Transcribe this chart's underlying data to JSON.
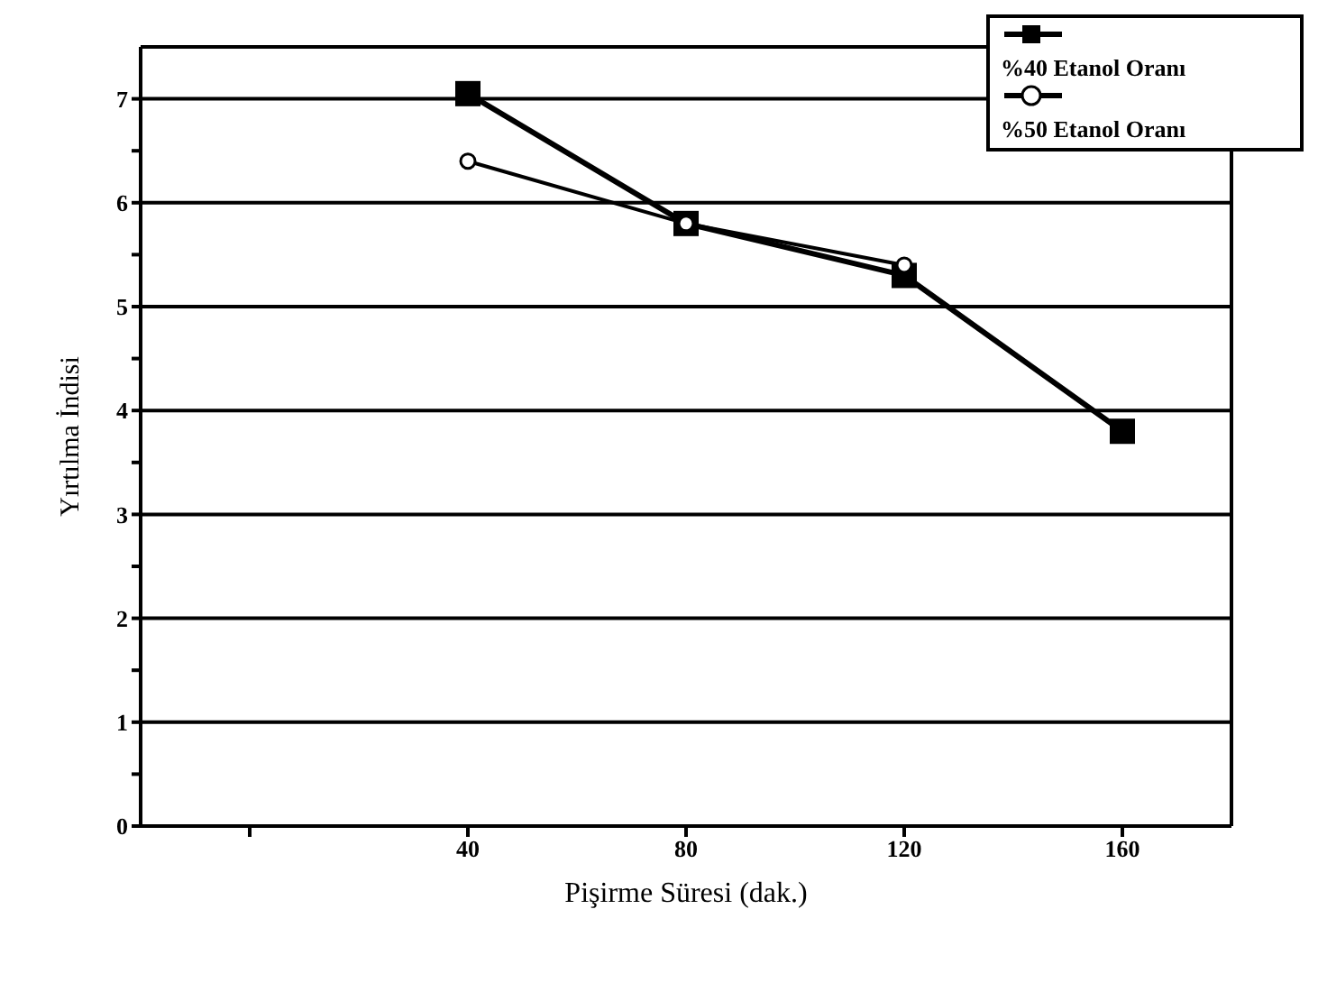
{
  "chart_data": {
    "type": "line",
    "xlabel": "Pişirme Süresi (dak.)",
    "ylabel": "Yırtılma İndisi",
    "categories": [
      null,
      "40",
      "80",
      "120",
      "160"
    ],
    "series": [
      {
        "name": "%40 Etanol Oranı",
        "color": "#000000",
        "marker": "square",
        "values": [
          null,
          7.05,
          5.8,
          5.3,
          3.8
        ]
      },
      {
        "name": "%50 Etanol Oranı",
        "color": "#000000",
        "marker": "circle",
        "values": [
          null,
          6.4,
          5.8,
          5.4,
          null
        ]
      }
    ],
    "ylim": [
      0,
      7.5
    ],
    "yticks": [
      0,
      {
        "value": 0.5,
        "label": null
      },
      1,
      {
        "value": 1.5,
        "label": null
      },
      2,
      {
        "value": 2.5,
        "label": null
      },
      3,
      {
        "value": 3.5,
        "label": null
      },
      4,
      {
        "value": 4.5,
        "label": null
      },
      5,
      {
        "value": 5.5,
        "label": null
      },
      6,
      {
        "value": 6.5,
        "label": null
      },
      7
    ],
    "grid": "y",
    "legend": "top right",
    "line_style": "solid"
  }
}
